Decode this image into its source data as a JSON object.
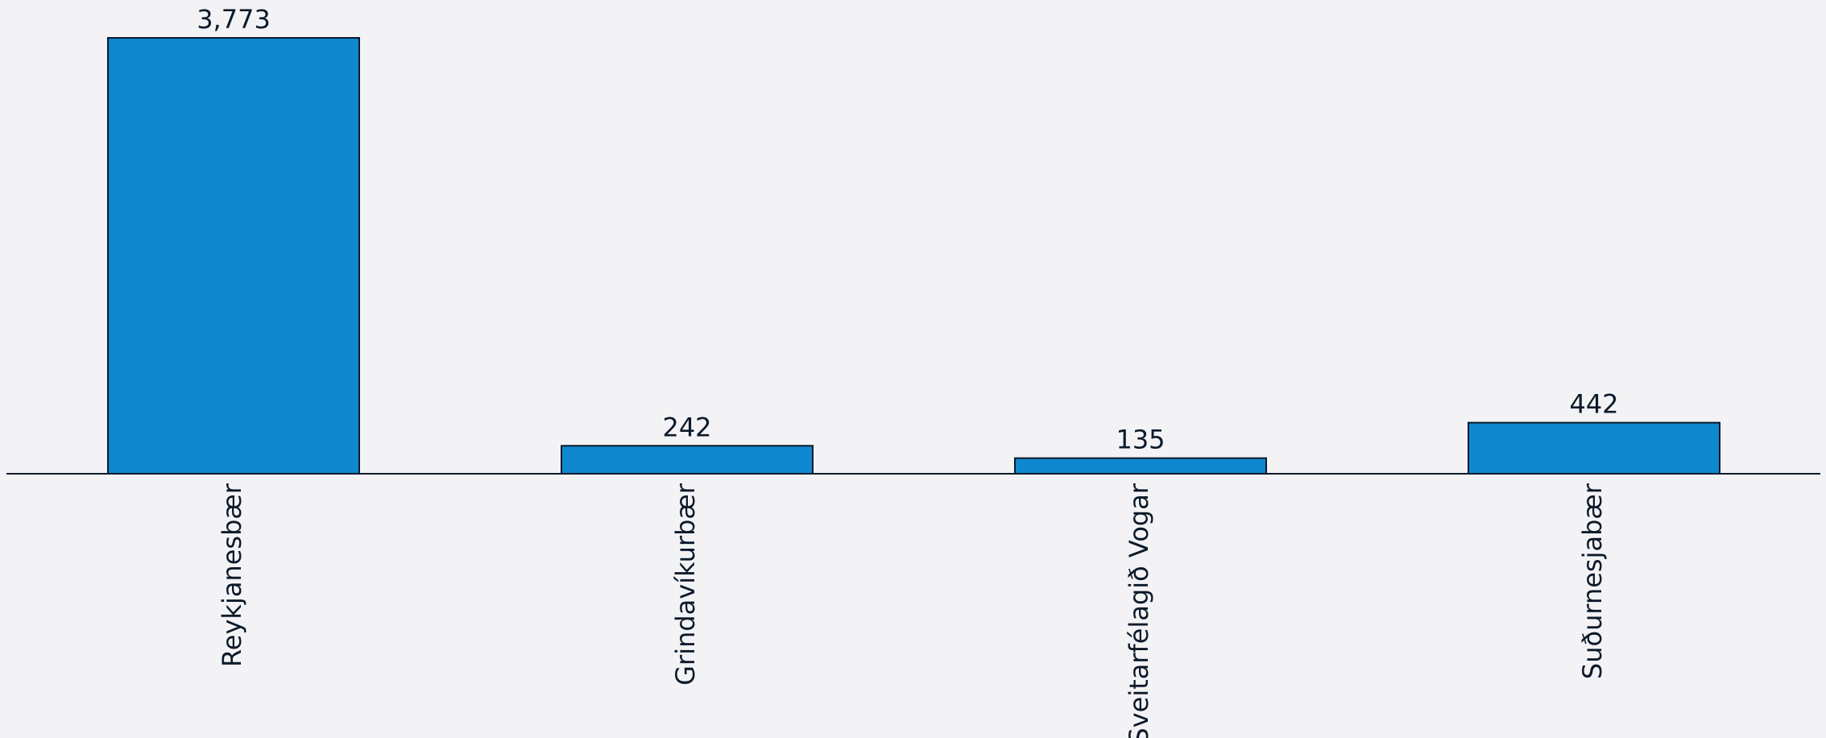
{
  "chart_data": {
    "type": "bar",
    "title": "",
    "xlabel": "",
    "ylabel": "",
    "categories": [
      "Reykjanesbær",
      "Grindavíkurbær",
      "Sveitarfélagið Vogar",
      "Suðurnesjabær"
    ],
    "values": [
      3773,
      242,
      135,
      442
    ],
    "value_labels": [
      "3,773",
      "242",
      "135",
      "442"
    ],
    "ylim": [
      0,
      3773
    ],
    "grid": false,
    "legend": "none",
    "bar_color": "#0f88cf",
    "edge_color": "#0c1a2a",
    "text_color": "#0c1a2a",
    "background_color": "#f3f3f5"
  }
}
